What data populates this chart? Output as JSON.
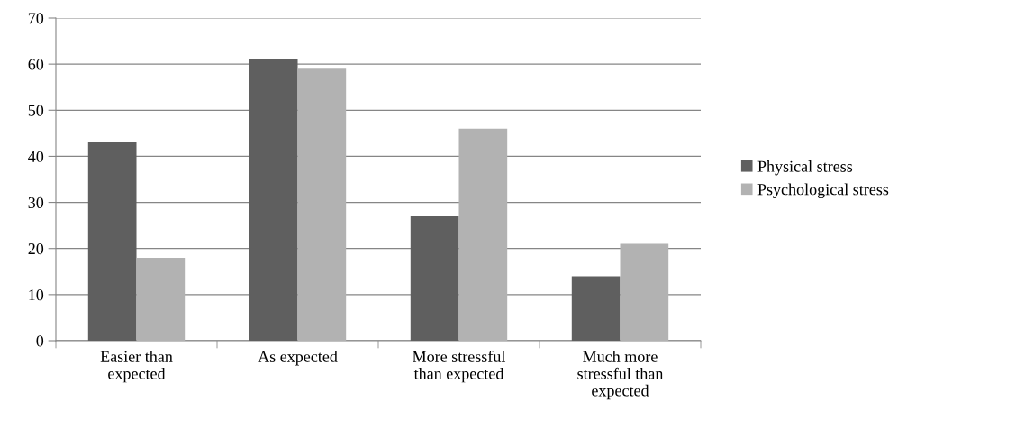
{
  "chart_data": {
    "type": "bar",
    "categories": [
      "Easier than expected",
      "As expected",
      "More stressful than expected",
      "Much more stressful than expected"
    ],
    "series": [
      {
        "name": "Physical stress",
        "color": "#5f5f5f",
        "values": [
          43,
          61,
          27,
          14
        ]
      },
      {
        "name": "Psychological stress",
        "color": "#b2b2b2",
        "values": [
          18,
          59,
          46,
          21
        ]
      }
    ],
    "ylim": [
      0,
      70
    ],
    "yticks": [
      0,
      10,
      20,
      30,
      40,
      50,
      60,
      70
    ],
    "grid": "y",
    "legend": "right"
  }
}
